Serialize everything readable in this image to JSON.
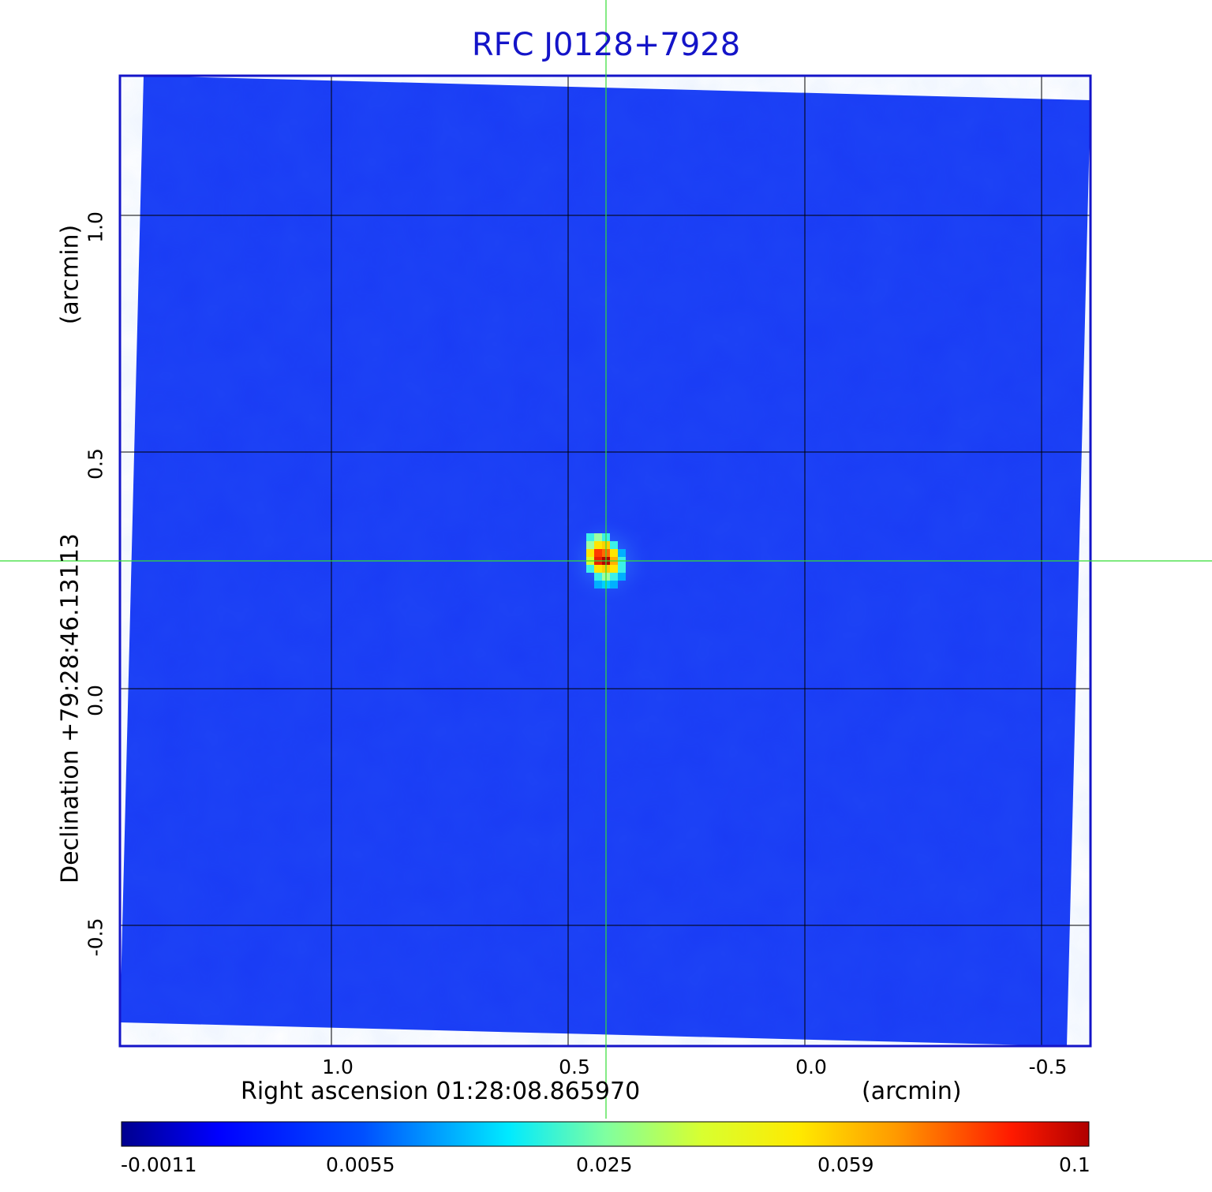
{
  "chart_data": {
    "type": "heatmap",
    "title": "RFC J0128+7928",
    "xlabel": "Right ascension  01:28:08.865970",
    "xunit": "(arcmin)",
    "ylabel": "Declination  +79:28:46.13113",
    "yunit": "(arcmin)",
    "x_ticks": [
      {
        "value": 1.0,
        "label": "1.0"
      },
      {
        "value": 0.5,
        "label": "0.5"
      },
      {
        "value": 0.0,
        "label": "0.0"
      },
      {
        "value": -0.5,
        "label": "-0.5"
      }
    ],
    "y_ticks": [
      {
        "value": 1.0,
        "label": "1.0"
      },
      {
        "value": 0.5,
        "label": "0.5"
      },
      {
        "value": 0.0,
        "label": "0.0"
      },
      {
        "value": -0.5,
        "label": "-0.5"
      }
    ],
    "xlim": [
      1.45,
      -0.6
    ],
    "ylim": [
      -0.76,
      1.3
    ],
    "grid": true,
    "crosshair": {
      "x": 0.42,
      "y": 0.27
    },
    "source_peak": {
      "x": 0.42,
      "y": 0.27
    },
    "colorbar": {
      "colormap": "jet",
      "ticks": [
        {
          "value": -0.0011,
          "label": "-0.0011"
        },
        {
          "value": 0.0055,
          "label": "0.0055"
        },
        {
          "value": 0.025,
          "label": "0.025"
        },
        {
          "value": 0.059,
          "label": "0.059"
        },
        {
          "value": 0.1,
          "label": "0.1"
        }
      ],
      "range": [
        -0.0011,
        0.1
      ]
    },
    "colors": {
      "title": "#1414c8",
      "frame": "#1414c8",
      "crosshair": "#33dd33",
      "background_map": "#1a3cf5",
      "grid": "#000000"
    }
  }
}
